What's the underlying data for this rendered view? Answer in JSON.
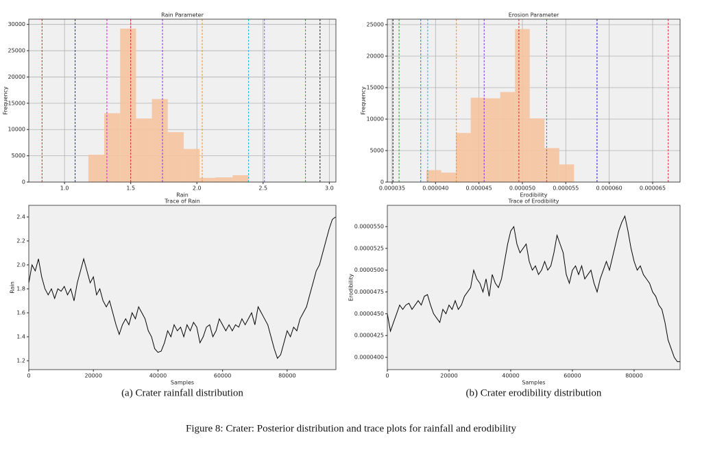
{
  "figure_caption": "Figure 8: Crater: Posterior distribution and trace plots for rainfall and erodibility",
  "chart_data": [
    {
      "type": "histogram",
      "title": "Rain Parameter",
      "xlabel": "Rain",
      "ylabel": "Frequency",
      "color": "#f5c3a0",
      "grid": true,
      "bins": [
        1.18,
        1.3,
        1.42,
        1.54,
        1.66,
        1.78,
        1.9,
        2.02,
        2.14,
        2.27,
        2.39
      ],
      "counts": [
        5200,
        13100,
        29200,
        12100,
        15800,
        9500,
        6300,
        800,
        900,
        1300
      ],
      "vlines": [
        {
          "value": 0.83,
          "color": "#d62728"
        },
        {
          "value": 1.08,
          "color": "#1f1fd6"
        },
        {
          "value": 1.32,
          "color": "#e020e0"
        },
        {
          "value": 1.5,
          "color": "#d62728"
        },
        {
          "value": 1.74,
          "color": "#8a2be2"
        },
        {
          "value": 2.04,
          "color": "#ff8c1a"
        },
        {
          "value": 2.39,
          "color": "#1fb5e0"
        },
        {
          "value": 2.51,
          "color": "#7b68ee"
        },
        {
          "value": 2.82,
          "color": "#2ca02c"
        },
        {
          "value": 2.93,
          "color": "#222222"
        }
      ],
      "xlim": [
        0.73,
        3.05
      ],
      "ylim": [
        0,
        31000
      ],
      "xticks": [
        {
          "value": 1,
          "label": "1.0"
        },
        1.5,
        {
          "value": 2,
          "label": "2.0"
        },
        2.5,
        {
          "value": 3,
          "label": "3.0"
        }
      ],
      "yticks": [
        0,
        5000,
        10000,
        15000,
        20000,
        25000,
        30000
      ]
    },
    {
      "type": "histogram",
      "title": "Erosion Parameter",
      "xlabel": "Erodibility",
      "ylabel": "Frequency",
      "color": "#f5c3a0",
      "grid": true,
      "bins": [
        3.895e-05,
        4.065e-05,
        4.235e-05,
        4.405e-05,
        4.575e-05,
        4.745e-05,
        4.915e-05,
        5.085e-05,
        5.255e-05,
        5.425e-05,
        5.595e-05
      ],
      "counts": [
        1900,
        1500,
        7800,
        13400,
        13300,
        14300,
        24300,
        10100,
        5400,
        2800
      ],
      "vlines": [
        {
          "value": 3.51e-05,
          "color": "#222222"
        },
        {
          "value": 3.58e-05,
          "color": "#2ca02c"
        },
        {
          "value": 3.83e-05,
          "color": "#1f77e0"
        },
        {
          "value": 3.91e-05,
          "color": "#1fb5e0"
        },
        {
          "value": 4.24e-05,
          "color": "#ff8c1a"
        },
        {
          "value": 4.56e-05,
          "color": "#8a2be2"
        },
        {
          "value": 4.96e-05,
          "color": "#d62728"
        },
        {
          "value": 5.28e-05,
          "color": "#e020e0"
        },
        {
          "value": 5.86e-05,
          "color": "#1f1fd6"
        },
        {
          "value": 6.68e-05,
          "color": "#d62728"
        }
      ],
      "xlim": [
        3.445e-05,
        6.816e-05
      ],
      "ylim": [
        0,
        25870
      ],
      "xticks": [
        {
          "value": 3.5e-05,
          "label": "0.000035"
        },
        {
          "value": 4e-05,
          "label": "0.000040"
        },
        {
          "value": 4.5e-05,
          "label": "0.000045"
        },
        {
          "value": 5e-05,
          "label": "0.000050"
        },
        {
          "value": 5.5e-05,
          "label": "0.000055"
        },
        {
          "value": 6e-05,
          "label": "0.000060"
        },
        {
          "value": 6.5e-05,
          "label": "0.000065"
        }
      ],
      "yticks": [
        0,
        5000,
        10000,
        15000,
        20000,
        25000
      ]
    },
    {
      "type": "line",
      "title": "Trace of Rain",
      "xlabel": "Samples",
      "ylabel": "Rain",
      "color": "#000000",
      "grid": false,
      "caption": "(a)  Crater rainfall distribution",
      "x": [
        0,
        1000,
        2000,
        3000,
        4000,
        5000,
        6000,
        7000,
        8000,
        9000,
        10000,
        11000,
        12000,
        13000,
        14000,
        15000,
        16000,
        17000,
        18000,
        19000,
        20000,
        21000,
        22000,
        23000,
        24000,
        25000,
        26000,
        27000,
        28000,
        29000,
        30000,
        31000,
        32000,
        33000,
        34000,
        35000,
        36000,
        37000,
        38000,
        39000,
        40000,
        41000,
        42000,
        43000,
        44000,
        45000,
        46000,
        47000,
        48000,
        49000,
        50000,
        51000,
        52000,
        53000,
        54000,
        55000,
        56000,
        57000,
        58000,
        59000,
        60000,
        61000,
        62000,
        63000,
        64000,
        65000,
        66000,
        67000,
        68000,
        69000,
        70000,
        71000,
        72000,
        73000,
        74000,
        75000,
        76000,
        77000,
        78000,
        79000,
        80000,
        81000,
        82000,
        83000,
        84000,
        85000,
        86000,
        87000,
        88000,
        89000,
        90000,
        91000,
        92000,
        93000,
        94000,
        95000
      ],
      "values": [
        1.85,
        2.0,
        1.95,
        2.05,
        1.9,
        1.8,
        1.75,
        1.8,
        1.72,
        1.8,
        1.78,
        1.82,
        1.75,
        1.8,
        1.7,
        1.85,
        1.95,
        2.05,
        1.95,
        1.85,
        1.9,
        1.75,
        1.8,
        1.7,
        1.65,
        1.7,
        1.6,
        1.5,
        1.42,
        1.5,
        1.55,
        1.5,
        1.6,
        1.55,
        1.65,
        1.6,
        1.55,
        1.45,
        1.4,
        1.3,
        1.27,
        1.28,
        1.35,
        1.45,
        1.4,
        1.5,
        1.45,
        1.48,
        1.4,
        1.5,
        1.45,
        1.52,
        1.48,
        1.35,
        1.4,
        1.48,
        1.5,
        1.4,
        1.45,
        1.55,
        1.5,
        1.45,
        1.5,
        1.45,
        1.5,
        1.48,
        1.55,
        1.5,
        1.55,
        1.6,
        1.5,
        1.65,
        1.6,
        1.55,
        1.5,
        1.4,
        1.3,
        1.22,
        1.25,
        1.35,
        1.45,
        1.4,
        1.48,
        1.45,
        1.55,
        1.6,
        1.65,
        1.75,
        1.85,
        1.95,
        2.0,
        2.1,
        2.2,
        2.3,
        2.38,
        2.4
      ],
      "xlim": [
        0,
        95100
      ],
      "ylim": [
        1.126,
        2.497
      ],
      "xticks": [
        0,
        20000,
        40000,
        60000,
        80000
      ],
      "yticks": [
        1.2,
        1.4,
        1.6,
        1.8,
        {
          "value": 2,
          "label": "2.0"
        },
        2.2,
        2.4
      ]
    },
    {
      "type": "line",
      "title": "Trace of Erodibility",
      "xlabel": "Samples",
      "ylabel": "Erodibility",
      "color": "#000000",
      "grid": false,
      "caption": "(b)  Crater erodibility distribution",
      "x": [
        0,
        1000,
        2000,
        3000,
        4000,
        5000,
        6000,
        7000,
        8000,
        9000,
        10000,
        11000,
        12000,
        13000,
        14000,
        15000,
        16000,
        17000,
        18000,
        19000,
        20000,
        21000,
        22000,
        23000,
        24000,
        25000,
        26000,
        27000,
        28000,
        29000,
        30000,
        31000,
        32000,
        33000,
        34000,
        35000,
        36000,
        37000,
        38000,
        39000,
        40000,
        41000,
        42000,
        43000,
        44000,
        45000,
        46000,
        47000,
        48000,
        49000,
        50000,
        51000,
        52000,
        53000,
        54000,
        55000,
        56000,
        57000,
        58000,
        59000,
        60000,
        61000,
        62000,
        63000,
        64000,
        65000,
        66000,
        67000,
        68000,
        69000,
        70000,
        71000,
        72000,
        73000,
        74000,
        75000,
        76000,
        77000,
        78000,
        79000,
        80000,
        81000,
        82000,
        83000,
        84000,
        85000,
        86000,
        87000,
        88000,
        89000,
        90000,
        91000,
        92000,
        93000,
        94000,
        95000
      ],
      "values": [
        4.5e-05,
        4.3e-05,
        4.4e-05,
        4.5e-05,
        4.6e-05,
        4.55e-05,
        4.6e-05,
        4.62e-05,
        4.55e-05,
        4.6e-05,
        4.65e-05,
        4.6e-05,
        4.7e-05,
        4.72e-05,
        4.6e-05,
        4.5e-05,
        4.45e-05,
        4.4e-05,
        4.55e-05,
        4.5e-05,
        4.6e-05,
        4.55e-05,
        4.65e-05,
        4.55e-05,
        4.6e-05,
        4.7e-05,
        4.75e-05,
        4.8e-05,
        5e-05,
        4.9e-05,
        4.85e-05,
        4.75e-05,
        4.9e-05,
        4.7e-05,
        4.95e-05,
        4.85e-05,
        4.8e-05,
        4.9e-05,
        5.1e-05,
        5.3e-05,
        5.45e-05,
        5.5e-05,
        5.3e-05,
        5.2e-05,
        5.25e-05,
        5.3e-05,
        5.1e-05,
        5e-05,
        5.05e-05,
        4.95e-05,
        5e-05,
        5.1e-05,
        5e-05,
        5.05e-05,
        5.2e-05,
        5.4e-05,
        5.3e-05,
        5.2e-05,
        4.95e-05,
        4.85e-05,
        5e-05,
        5.05e-05,
        4.95e-05,
        5.05e-05,
        4.9e-05,
        4.95e-05,
        5e-05,
        4.85e-05,
        4.75e-05,
        4.9e-05,
        5e-05,
        5.1e-05,
        5e-05,
        5.15e-05,
        5.3e-05,
        5.45e-05,
        5.55e-05,
        5.62e-05,
        5.45e-05,
        5.25e-05,
        5.1e-05,
        5e-05,
        5.05e-05,
        4.95e-05,
        4.9e-05,
        4.85e-05,
        4.75e-05,
        4.7e-05,
        4.6e-05,
        4.55e-05,
        4.4e-05,
        4.2e-05,
        4.1e-05,
        4e-05,
        3.95e-05,
        3.95e-05
      ],
      "xlim": [
        0,
        94900
      ],
      "ylim": [
        3.859e-05,
        5.744e-05
      ],
      "xticks": [
        0,
        20000,
        40000,
        60000,
        80000
      ],
      "yticks": [
        {
          "value": 4e-05,
          "label": "0.0000400"
        },
        {
          "value": 4.25e-05,
          "label": "0.0000425"
        },
        {
          "value": 4.5e-05,
          "label": "0.0000450"
        },
        {
          "value": 4.75e-05,
          "label": "0.0000475"
        },
        {
          "value": 5e-05,
          "label": "0.0000500"
        },
        {
          "value": 5.25e-05,
          "label": "0.0000525"
        },
        {
          "value": 5.5e-05,
          "label": "0.0000550"
        }
      ]
    }
  ]
}
